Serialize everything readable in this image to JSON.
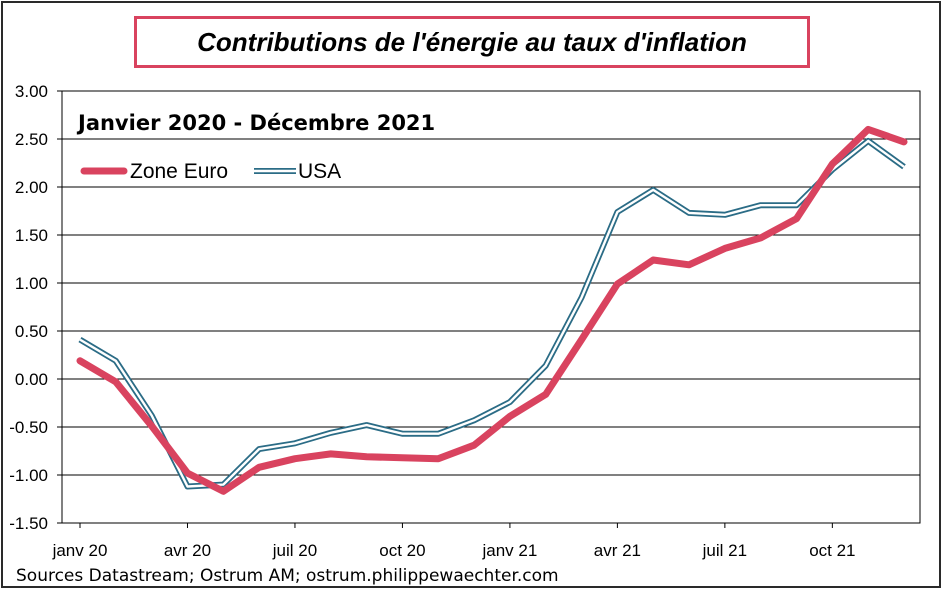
{
  "title": "Contributions de l'énergie au taux d'inflation",
  "source": "Sources Datastream;  Ostrum AM; ostrum.philippewaechter.com",
  "colors": {
    "euro": "#d9435f",
    "usa_outer": "#2b6c86",
    "usa_inner": "#ffffff",
    "title_border": "#d9435f"
  },
  "chart_data": {
    "type": "line",
    "subtitle": "Janvier 2020 - Décembre 2021",
    "ylim": [
      -1.5,
      3.0
    ],
    "yticks": [
      "3.00",
      "2.50",
      "2.00",
      "1.50",
      "1.00",
      "0.50",
      "0.00",
      "-0.50",
      "-1.00",
      "-1.50"
    ],
    "ytick_values": [
      3.0,
      2.5,
      2.0,
      1.5,
      1.0,
      0.5,
      0.0,
      -0.5,
      -1.0,
      -1.5
    ],
    "x": [
      "2020-01",
      "2020-02",
      "2020-03",
      "2020-04",
      "2020-05",
      "2020-06",
      "2020-07",
      "2020-08",
      "2020-09",
      "2020-10",
      "2020-11",
      "2020-12",
      "2021-01",
      "2021-02",
      "2021-03",
      "2021-04",
      "2021-05",
      "2021-06",
      "2021-07",
      "2021-08",
      "2021-09",
      "2021-10",
      "2021-11",
      "2021-12"
    ],
    "xtick_labels": [
      "janv 20",
      "avr 20",
      "juil 20",
      "oct 20",
      "janv 21",
      "avr 21",
      "juil 21",
      "oct 21"
    ],
    "xtick_index": [
      0,
      3,
      6,
      9,
      12,
      15,
      18,
      21
    ],
    "grid": "horizontal",
    "legend_position": "top-left",
    "series": [
      {
        "name": "Zone Euro",
        "style": "thick",
        "values": [
          0.19,
          -0.03,
          -0.49,
          -0.98,
          -1.17,
          -0.92,
          -0.83,
          -0.78,
          -0.81,
          -0.82,
          -0.83,
          -0.69,
          -0.39,
          -0.16,
          0.41,
          0.99,
          1.24,
          1.19,
          1.36,
          1.47,
          1.67,
          2.24,
          2.6,
          2.47
        ]
      },
      {
        "name": "USA",
        "style": "double",
        "values": [
          0.41,
          0.19,
          -0.38,
          -1.12,
          -1.1,
          -0.73,
          -0.67,
          -0.56,
          -0.48,
          -0.57,
          -0.57,
          -0.43,
          -0.24,
          0.14,
          0.85,
          1.74,
          1.97,
          1.73,
          1.71,
          1.81,
          1.81,
          2.18,
          2.48,
          2.21
        ]
      }
    ]
  }
}
